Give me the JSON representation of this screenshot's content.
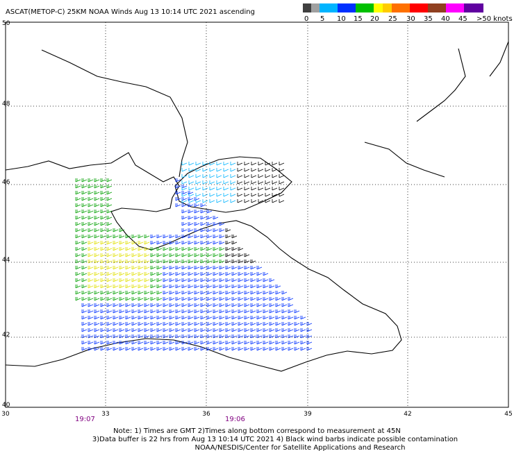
{
  "header": {
    "title": "ASCAT(METOP-C) 25KM NOAA Winds Aug 13 10:14 UTC 2021 ascending"
  },
  "legend": {
    "labels": [
      "0",
      "5",
      "10",
      "15",
      "20",
      "25",
      "30",
      "35",
      "40",
      "45",
      ">50 knots"
    ]
  },
  "axes": {
    "lat_labels": [
      "50",
      "48",
      "46",
      "44",
      "42",
      "40"
    ],
    "lon_labels": [
      "30",
      "33",
      "36",
      "39",
      "42",
      "45"
    ]
  },
  "times": [
    "19:07",
    "19:06"
  ],
  "notes": [
    "Note: 1) Times are GMT 2)Times along bottom correspond to measurement at 45N",
    "3)Data buffer is 22 hrs from Aug 13 10:14 UTC 2021 4) Black wind barbs indicate possible contamination",
    "NOAA/NESDIS/Center for Satellite Applications and Research"
  ]
}
